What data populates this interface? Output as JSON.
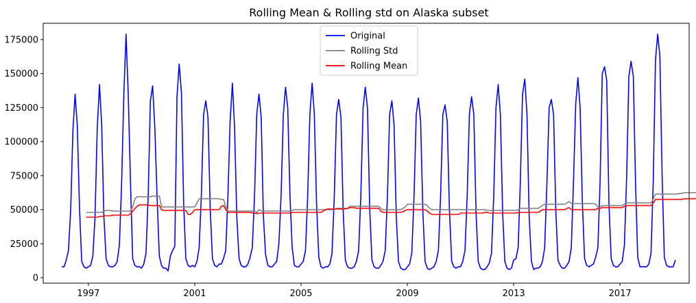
{
  "chart_data": {
    "type": "line",
    "title": "Rolling Mean & Rolling std on Alaska subset",
    "xlabel": "",
    "ylabel": "",
    "xlim": [
      1995.3,
      2019.6
    ],
    "ylim": [
      -4000,
      187000
    ],
    "x_ticks": [
      1997,
      2001,
      2005,
      2009,
      2013,
      2017
    ],
    "x_tick_labels": [
      "1997",
      "2001",
      "2005",
      "2009",
      "2013",
      "2017"
    ],
    "y_ticks": [
      0,
      25000,
      50000,
      75000,
      100000,
      125000,
      150000,
      175000
    ],
    "y_tick_labels": [
      "0",
      "25000",
      "50000",
      "75000",
      "100000",
      "125000",
      "150000",
      "175000"
    ],
    "grid": false,
    "legend_position": "top-center",
    "legend": [
      "Original",
      "Rolling Std",
      "Rolling Mean"
    ],
    "series": [
      {
        "name": "Original",
        "color": "#0000ff",
        "start": 1996.0,
        "step": 0.08333,
        "values": [
          8000,
          8000,
          13000,
          20000,
          50000,
          108000,
          135000,
          112000,
          50000,
          12000,
          8000,
          7000,
          8000,
          9000,
          16000,
          45000,
          110000,
          142000,
          112000,
          45000,
          14000,
          9000,
          8000,
          8000,
          9000,
          12000,
          24000,
          70000,
          135000,
          179000,
          135000,
          70000,
          14000,
          9000,
          8000,
          8000,
          7000,
          10000,
          18000,
          60000,
          130000,
          141000,
          110000,
          60000,
          16000,
          9000,
          7000,
          7000,
          5000,
          16000,
          20000,
          23000,
          133000,
          157000,
          136000,
          55000,
          14000,
          9000,
          8000,
          9000,
          8000,
          12000,
          22000,
          60000,
          120000,
          130000,
          118000,
          50000,
          14000,
          9000,
          8000,
          10000,
          10000,
          14000,
          20000,
          60000,
          115000,
          143000,
          110000,
          45000,
          14000,
          9000,
          8000,
          8000,
          10000,
          15000,
          22000,
          60000,
          120000,
          135000,
          118000,
          45000,
          17000,
          9000,
          8000,
          8000,
          10000,
          12000,
          25000,
          60000,
          120000,
          140000,
          125000,
          60000,
          22000,
          9000,
          8000,
          8000,
          10000,
          12000,
          20000,
          60000,
          120000,
          143000,
          120000,
          55000,
          15000,
          8000,
          7000,
          8000,
          8000,
          10000,
          18000,
          60000,
          120000,
          131000,
          118000,
          50000,
          13000,
          8000,
          7000,
          7000,
          8000,
          12000,
          20000,
          60000,
          125000,
          140000,
          125000,
          50000,
          13000,
          8000,
          7000,
          7000,
          9000,
          12000,
          20000,
          60000,
          120000,
          130000,
          112000,
          45000,
          12000,
          7000,
          6000,
          6000,
          8000,
          10000,
          18000,
          60000,
          120000,
          132000,
          115000,
          48000,
          12000,
          7000,
          6000,
          7000,
          8000,
          12000,
          20000,
          60000,
          120000,
          127000,
          115000,
          50000,
          12000,
          8000,
          7000,
          8000,
          8000,
          12000,
          20000,
          60000,
          120000,
          133000,
          120000,
          48000,
          12000,
          7000,
          6000,
          6000,
          8000,
          11000,
          18000,
          60000,
          125000,
          142000,
          120000,
          48000,
          12000,
          7000,
          6000,
          7000,
          13000,
          14000,
          22000,
          70000,
          135000,
          146000,
          120000,
          45000,
          12000,
          6000,
          7000,
          7000,
          8000,
          12000,
          22000,
          70000,
          125000,
          131000,
          120000,
          50000,
          13000,
          9000,
          7000,
          7000,
          9000,
          12000,
          22000,
          70000,
          128000,
          147000,
          125000,
          55000,
          14000,
          9000,
          8000,
          9000,
          10000,
          15000,
          22000,
          70000,
          150000,
          155000,
          145000,
          55000,
          14000,
          9000,
          8000,
          8000,
          10000,
          12000,
          24000,
          75000,
          148000,
          159000,
          148000,
          70000,
          15000,
          8000,
          8000,
          8000,
          8000,
          10000,
          18000,
          70000,
          160000,
          179000,
          163000,
          75000,
          15000,
          9000,
          8000,
          8000,
          8000,
          13000
        ]
      },
      {
        "name": "Rolling Std",
        "color": "#808080",
        "start": 1996.92,
        "step": 0.08333,
        "values": [
          48000,
          48000,
          48000,
          48000,
          48000,
          48000,
          48000,
          48000,
          49000,
          49500,
          49500,
          49500,
          49000,
          49000,
          49000,
          49000,
          49000,
          49000,
          49000,
          49000,
          49000,
          52000,
          58000,
          59500,
          59500,
          59500,
          59500,
          59500,
          59500,
          59500,
          60000,
          60000,
          60000,
          60000,
          52000,
          52000,
          52000,
          52000,
          52000,
          52000,
          52000,
          52000,
          52000,
          52000,
          52000,
          52000,
          52000,
          52000,
          52000,
          52000,
          55000,
          58000,
          58000,
          58000,
          58000,
          58000,
          58000,
          58000,
          58000,
          58000,
          58000,
          57500,
          57500,
          52000,
          49000,
          49000,
          49000,
          49000,
          49000,
          49000,
          49000,
          49000,
          49000,
          49000,
          49000,
          49000,
          49000,
          48000,
          50000,
          49000,
          49000,
          49000,
          49000,
          49000,
          49000,
          49000,
          49000,
          49000,
          49000,
          49000,
          49000,
          49000,
          49000,
          49500,
          50000,
          50000,
          50000,
          50000,
          50000,
          50000,
          50000,
          50000,
          50000,
          50000,
          50000,
          50000,
          50000,
          50000,
          50000,
          50000,
          50000,
          50000,
          50000,
          51000,
          51000,
          51000,
          51000,
          51000,
          51000,
          52500,
          52500,
          52500,
          52500,
          52500,
          52500,
          52500,
          52500,
          52500,
          52500,
          52500,
          52500,
          52500,
          52500,
          51000,
          50000,
          50000,
          50000,
          50000,
          50000,
          50000,
          50000,
          50000,
          50000,
          51000,
          52000,
          54000,
          54000,
          54000,
          54000,
          54000,
          54000,
          54000,
          54000,
          54000,
          53000,
          51000,
          50000,
          50000,
          50000,
          50000,
          50000,
          50000,
          50000,
          50000,
          50000,
          50000,
          50000,
          50000,
          50000,
          50000,
          50000,
          50000,
          50000,
          50000,
          50000,
          50000,
          50000,
          50000,
          50000,
          50000,
          50000,
          49500,
          49500,
          49500,
          49500,
          49500,
          49500,
          49500,
          49500,
          49500,
          49500,
          49500,
          49500,
          49500,
          49500,
          50000,
          51000,
          51000,
          51000,
          51000,
          51000,
          51000,
          51000,
          51000,
          51000,
          52000,
          53000,
          54000,
          54000,
          54000,
          54000,
          54000,
          54000,
          54000,
          54000,
          54000,
          54000,
          55000,
          56000,
          54500,
          54500,
          54500,
          54500,
          54500,
          54500,
          54500,
          54500,
          54500,
          54500,
          54500,
          54000,
          52000,
          52000,
          53000,
          53000,
          53000,
          53000,
          53000,
          53000,
          53000,
          53000,
          53000,
          53000,
          54000,
          55000,
          55000,
          55000,
          55000,
          55000,
          55000,
          55000,
          55000,
          55000,
          55000,
          55000,
          55000,
          58000,
          61500,
          61500,
          61500,
          61500,
          61500,
          61500,
          61500,
          61500,
          61500,
          61500,
          61500,
          62000,
          62000,
          62500,
          62500,
          62500,
          62500,
          62500,
          62500,
          62500,
          62500,
          62500,
          62500,
          63000,
          66000,
          69500,
          69500,
          69500,
          69500,
          69500,
          69500,
          69500,
          69500,
          69500
        ]
      },
      {
        "name": "Rolling Mean",
        "color": "#ff0000",
        "start": 1996.92,
        "step": 0.08333,
        "values": [
          44500,
          44500,
          44500,
          44500,
          44500,
          44500,
          45000,
          45000,
          45500,
          45500,
          45500,
          45500,
          46000,
          46000,
          46000,
          46000,
          46000,
          46000,
          46000,
          46000,
          47000,
          49000,
          51000,
          52500,
          53500,
          53500,
          53500,
          53500,
          53500,
          53000,
          53000,
          53000,
          53000,
          53000,
          50000,
          49500,
          49500,
          49500,
          49500,
          49500,
          49500,
          49500,
          49500,
          49500,
          49500,
          49500,
          46500,
          46500,
          48000,
          50000,
          50000,
          50000,
          50000,
          50000,
          50000,
          50000,
          50000,
          50000,
          50000,
          50000,
          50000,
          52500,
          53000,
          50000,
          48000,
          48000,
          48000,
          48000,
          48000,
          48000,
          48000,
          48000,
          48000,
          48000,
          48000,
          47500,
          47500,
          47000,
          47500,
          47500,
          47500,
          47500,
          47500,
          47500,
          47500,
          47500,
          47500,
          47500,
          47500,
          47500,
          47500,
          47500,
          47500,
          48000,
          48000,
          48000,
          48000,
          48000,
          48000,
          48000,
          48000,
          48000,
          48000,
          48000,
          48000,
          48000,
          48000,
          49000,
          50000,
          50500,
          50500,
          50500,
          50500,
          50500,
          50500,
          50500,
          50500,
          50500,
          51000,
          51500,
          51500,
          51500,
          51000,
          51000,
          51000,
          51000,
          51000,
          51000,
          51000,
          51000,
          51000,
          51000,
          51000,
          49000,
          48000,
          48000,
          48000,
          48000,
          48000,
          48000,
          48000,
          48000,
          48000,
          48500,
          49500,
          50000,
          50000,
          50000,
          50000,
          50000,
          50000,
          50000,
          50000,
          50000,
          49000,
          47500,
          46500,
          46500,
          46500,
          46500,
          46500,
          46500,
          46500,
          46500,
          46500,
          46500,
          46500,
          46500,
          46500,
          47500,
          47500,
          47500,
          47500,
          47500,
          47500,
          47500,
          47500,
          47500,
          47500,
          47500,
          48000,
          48000,
          47500,
          47500,
          47500,
          47500,
          47500,
          47500,
          47500,
          47500,
          47500,
          47500,
          47500,
          47500,
          47500,
          48000,
          48000,
          48000,
          48000,
          48000,
          48000,
          48000,
          48000,
          48000,
          48000,
          49000,
          50000,
          50000,
          50000,
          50000,
          50000,
          50000,
          50000,
          50000,
          50000,
          50000,
          50000,
          51000,
          51500,
          50000,
          50000,
          50000,
          50000,
          50000,
          50000,
          50000,
          50000,
          50000,
          50000,
          50000,
          50000,
          51000,
          51000,
          51500,
          51500,
          51500,
          51500,
          51500,
          51500,
          51500,
          51500,
          51500,
          51500,
          52500,
          53000,
          53000,
          53000,
          53000,
          53000,
          53000,
          53000,
          53000,
          53000,
          53000,
          53000,
          53000,
          55000,
          57500,
          57500,
          57500,
          57500,
          57500,
          57500,
          57500,
          57500,
          57500,
          57500,
          57500,
          57500,
          57500,
          58000,
          58000,
          58000,
          58000,
          58000,
          58000,
          58000,
          58000,
          58000,
          58000,
          59000,
          61000,
          63000,
          63000,
          63000,
          63000,
          63000,
          63000,
          63000,
          63000,
          63000
        ]
      }
    ]
  }
}
